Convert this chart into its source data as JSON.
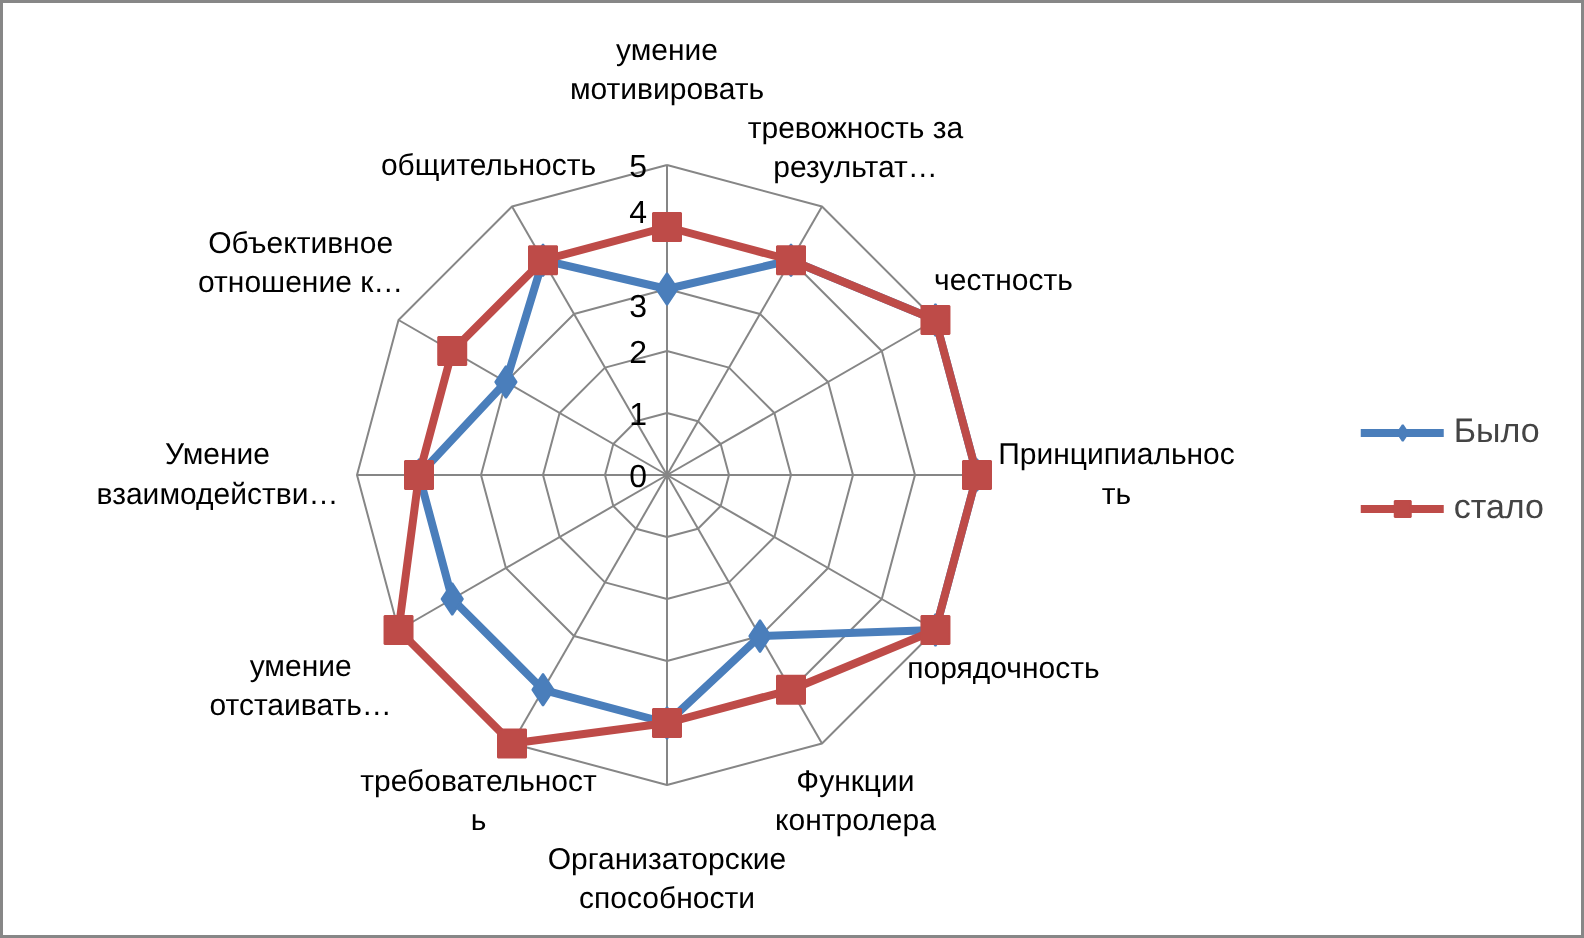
{
  "chart_data": {
    "type": "radar",
    "categories": [
      "умение\nмотивировать",
      "тревожность за\nрезультат…",
      "честность",
      "Принципиальнос\nть",
      "порядочность",
      "Функции\nконтролера",
      "Организаторские\nспособности",
      "требовательност\nь",
      "умение\nотстаивать…",
      "Умение\nвзаимодействи…",
      "Объективное\nотношение к…",
      "общительность"
    ],
    "series": [
      {
        "name": "Было",
        "color": "#4a7ebb",
        "marker": "diamond",
        "values": [
          3,
          4,
          5,
          5,
          5,
          3,
          4,
          4,
          4,
          4,
          3,
          4
        ]
      },
      {
        "name": "стало",
        "color": "#be4b48",
        "marker": "square",
        "values": [
          4,
          4,
          5,
          5,
          5,
          4,
          4,
          5,
          5,
          4,
          4,
          4
        ]
      }
    ],
    "ylim": [
      0,
      5
    ],
    "yticks": [
      0,
      1,
      2,
      3,
      4,
      5
    ],
    "grid": true,
    "legend": "right"
  }
}
